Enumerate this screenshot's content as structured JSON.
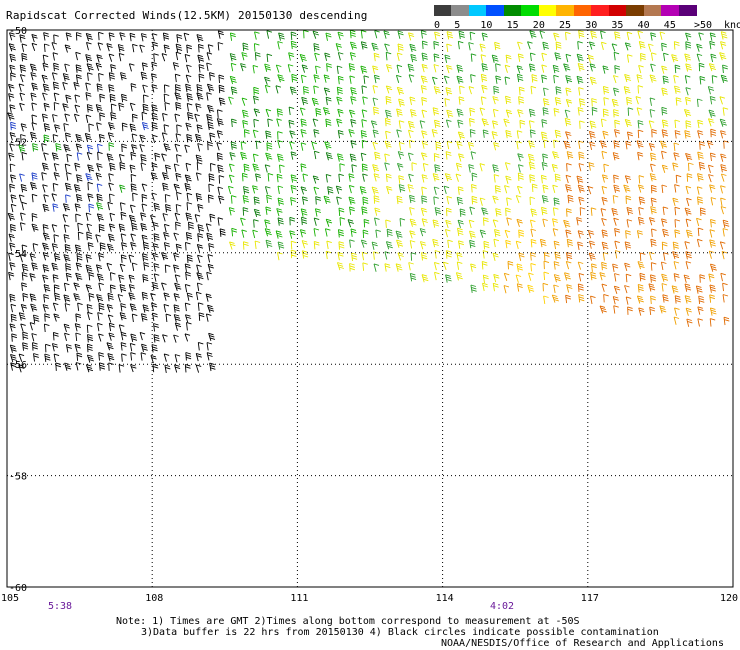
{
  "title": "Rapidscat Corrected Winds(12.5KM) 20150130 descending",
  "legend": {
    "ticks": [
      "0",
      "5",
      "10",
      "15",
      "20",
      "25",
      "30",
      "35",
      "40",
      "45",
      ">50"
    ],
    "units": "knots",
    "colors": [
      "#3c3c3c",
      "#8c8c8c",
      "#00c8ff",
      "#0050ff",
      "#008c00",
      "#00dc00",
      "#ffff00",
      "#ffb400",
      "#ff6400",
      "#ff1e1e",
      "#d20000",
      "#7a3c00",
      "#b47850",
      "#b400b4",
      "#5a0078"
    ]
  },
  "map": {
    "lon_labels": [
      "105",
      "108",
      "111",
      "114",
      "117",
      "120"
    ],
    "lat_labels": [
      "-50",
      "-52",
      "-54",
      "-56",
      "-58",
      "-60"
    ],
    "lon_range": [
      105,
      120
    ],
    "lat_range": [
      -60,
      -50
    ],
    "grid": "dotted"
  },
  "times": [
    {
      "label": "5:38",
      "lon": 106.0
    },
    {
      "label": "4:02",
      "lon": 114.9
    }
  ],
  "notes": {
    "line1": "Note: 1) Times are GMT 2)Times along bottom correspond to measurement at -50S",
    "line2": "3)Data buffer is 22 hrs from 20150130 4) Black circles indicate possible contamination",
    "credit": "NOAA/NESDIS/Office of Research and Applications"
  }
}
